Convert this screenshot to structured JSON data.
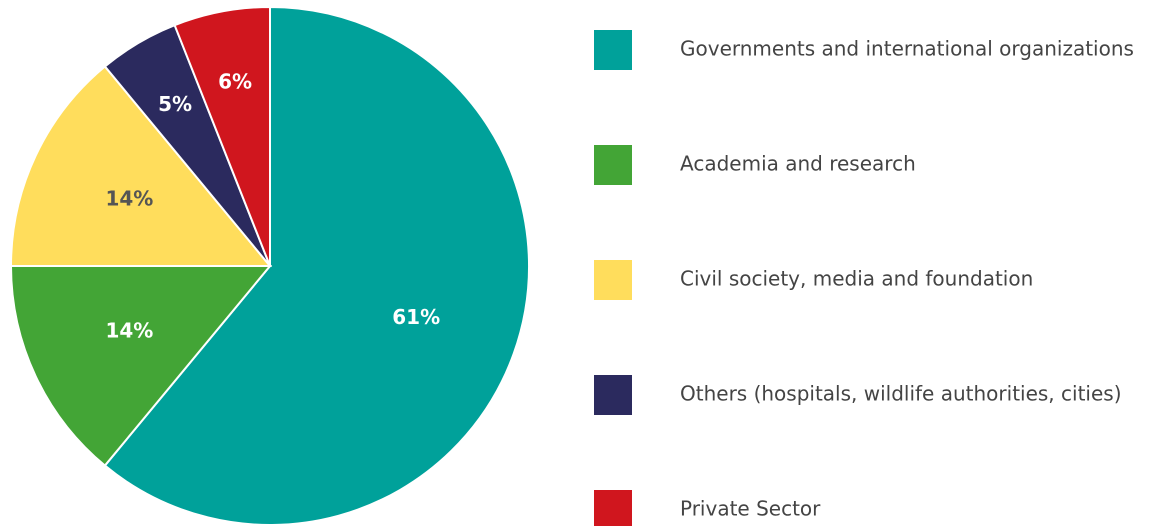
{
  "chart_data": {
    "type": "pie",
    "categories": [
      "Governments and international organizations",
      "Academia and research",
      "Civil society, media and foundation",
      "Others (hospitals, wildlife authorities, cities)",
      "Private Sector"
    ],
    "values": [
      61,
      14,
      14,
      5,
      6
    ],
    "value_labels": [
      "61%",
      "14%",
      "14%",
      "5%",
      "6%"
    ],
    "colors": [
      "#00a19a",
      "#43a536",
      "#ffdd5c",
      "#2b2a5e",
      "#d0161e"
    ]
  }
}
